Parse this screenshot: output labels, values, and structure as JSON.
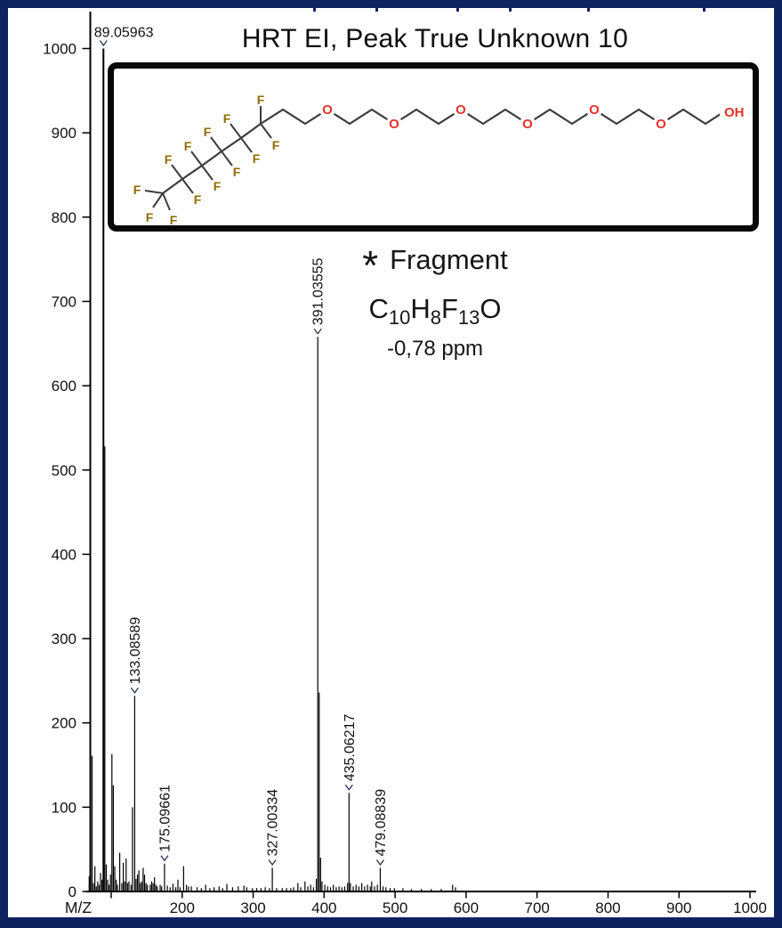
{
  "window": {
    "border_color": "#0e2260",
    "background_color": "#ffffff"
  },
  "title": "HRT EI, Peak True Unknown 10",
  "annotation": {
    "marker": "*",
    "label": "Fragment",
    "formula": [
      {
        "t": "C",
        "sub": "10"
      },
      {
        "t": "H",
        "sub": "8"
      },
      {
        "t": "F",
        "sub": "13"
      },
      {
        "t": "O",
        "sub": ""
      }
    ],
    "mass_error": "-0,78 ppm"
  },
  "structure": {
    "f_label": "F",
    "o_label": "O",
    "oh_label": "OH",
    "bond_color": "#3c3c3c",
    "fluorine_color": "#8f6b00",
    "oxygen_color": "#e8302a"
  },
  "chart_data": {
    "type": "bar",
    "variant": "mass-spectrum",
    "title": "HRT EI, Peak True Unknown 10",
    "xlabel": "M/Z",
    "ylabel": "",
    "xlim": [
      65,
      1010
    ],
    "ylim": [
      0,
      1000
    ],
    "grid": false,
    "x_major_ticks": [
      100,
      200,
      300,
      400,
      500,
      600,
      700,
      800,
      900,
      1000
    ],
    "x_tick_labels": [
      "",
      "200",
      "300",
      "400",
      "500",
      "600",
      "700",
      "800",
      "900",
      "1000"
    ],
    "y_ticks": [
      0,
      100,
      200,
      300,
      400,
      500,
      600,
      700,
      800,
      900,
      1000
    ],
    "labeled_peaks": [
      {
        "mz": 89.05963,
        "intensity": 1000,
        "label": "89.05963",
        "orientation": "horizontal"
      },
      {
        "mz": 133.08589,
        "intensity": 232,
        "label": "133.08589",
        "orientation": "vertical"
      },
      {
        "mz": 175.09661,
        "intensity": 33,
        "label": "175.09661",
        "orientation": "vertical"
      },
      {
        "mz": 327.00334,
        "intensity": 28,
        "label": "327.00334",
        "orientation": "vertical"
      },
      {
        "mz": 391.03555,
        "intensity": 658,
        "label": "391.03555",
        "orientation": "vertical"
      },
      {
        "mz": 435.06217,
        "intensity": 117,
        "label": "435.06217",
        "orientation": "vertical"
      },
      {
        "mz": 479.08839,
        "intensity": 28,
        "label": "479.08839",
        "orientation": "vertical"
      }
    ],
    "peaks": [
      [
        69,
        18
      ],
      [
        71,
        8
      ],
      [
        73,
        161
      ],
      [
        75,
        10
      ],
      [
        77,
        30
      ],
      [
        79,
        6
      ],
      [
        81,
        12
      ],
      [
        83,
        8
      ],
      [
        85,
        22
      ],
      [
        87,
        14
      ],
      [
        89.05963,
        1000
      ],
      [
        91,
        528
      ],
      [
        93,
        32
      ],
      [
        95,
        14
      ],
      [
        97,
        8
      ],
      [
        99,
        20
      ],
      [
        101,
        163
      ],
      [
        103,
        126
      ],
      [
        105,
        30
      ],
      [
        107,
        14
      ],
      [
        109,
        8
      ],
      [
        112,
        46
      ],
      [
        115,
        10
      ],
      [
        117,
        34
      ],
      [
        119,
        12
      ],
      [
        121,
        39
      ],
      [
        123,
        10
      ],
      [
        125,
        12
      ],
      [
        128,
        8
      ],
      [
        130,
        100
      ],
      [
        133.08589,
        232
      ],
      [
        135,
        15
      ],
      [
        137,
        20
      ],
      [
        139,
        25
      ],
      [
        141,
        10
      ],
      [
        143,
        12
      ],
      [
        145,
        28
      ],
      [
        147,
        20
      ],
      [
        149,
        10
      ],
      [
        151,
        8
      ],
      [
        155,
        8
      ],
      [
        157,
        12
      ],
      [
        159,
        10
      ],
      [
        161,
        17
      ],
      [
        163,
        8
      ],
      [
        165,
        6
      ],
      [
        169,
        8
      ],
      [
        171,
        6
      ],
      [
        175.09661,
        33
      ],
      [
        179,
        7
      ],
      [
        183,
        5
      ],
      [
        187,
        9
      ],
      [
        191,
        5
      ],
      [
        194,
        14
      ],
      [
        197,
        5
      ],
      [
        202,
        30
      ],
      [
        206,
        8
      ],
      [
        209,
        6
      ],
      [
        213,
        6
      ],
      [
        221,
        5
      ],
      [
        227,
        4
      ],
      [
        233,
        8
      ],
      [
        239,
        4
      ],
      [
        245,
        5
      ],
      [
        252,
        6
      ],
      [
        257,
        4
      ],
      [
        263,
        9
      ],
      [
        271,
        5
      ],
      [
        279,
        6
      ],
      [
        287,
        7
      ],
      [
        291,
        5
      ],
      [
        299,
        4
      ],
      [
        305,
        4
      ],
      [
        311,
        4
      ],
      [
        317,
        5
      ],
      [
        323,
        4
      ],
      [
        327.00334,
        28
      ],
      [
        333,
        4
      ],
      [
        341,
        4
      ],
      [
        347,
        4
      ],
      [
        353,
        4
      ],
      [
        357,
        5
      ],
      [
        363,
        10
      ],
      [
        367,
        5
      ],
      [
        373,
        12
      ],
      [
        377,
        6
      ],
      [
        381,
        8
      ],
      [
        385,
        5
      ],
      [
        389,
        15
      ],
      [
        391.03555,
        658
      ],
      [
        393,
        236
      ],
      [
        395,
        40
      ],
      [
        397,
        12
      ],
      [
        401,
        8
      ],
      [
        405,
        6
      ],
      [
        409,
        5
      ],
      [
        413,
        8
      ],
      [
        417,
        5
      ],
      [
        421,
        6
      ],
      [
        425,
        5
      ],
      [
        429,
        6
      ],
      [
        433,
        10
      ],
      [
        435.06217,
        117
      ],
      [
        437,
        10
      ],
      [
        441,
        6
      ],
      [
        445,
        8
      ],
      [
        449,
        6
      ],
      [
        453,
        10
      ],
      [
        457,
        6
      ],
      [
        461,
        8
      ],
      [
        465,
        6
      ],
      [
        467,
        12
      ],
      [
        471,
        6
      ],
      [
        475,
        8
      ],
      [
        479.08839,
        28
      ],
      [
        483,
        6
      ],
      [
        487,
        5
      ],
      [
        493,
        4
      ],
      [
        499,
        4
      ],
      [
        511,
        4
      ],
      [
        523,
        3
      ],
      [
        537,
        3
      ],
      [
        551,
        3
      ],
      [
        565,
        3
      ],
      [
        581,
        8
      ],
      [
        585,
        5
      ]
    ]
  }
}
